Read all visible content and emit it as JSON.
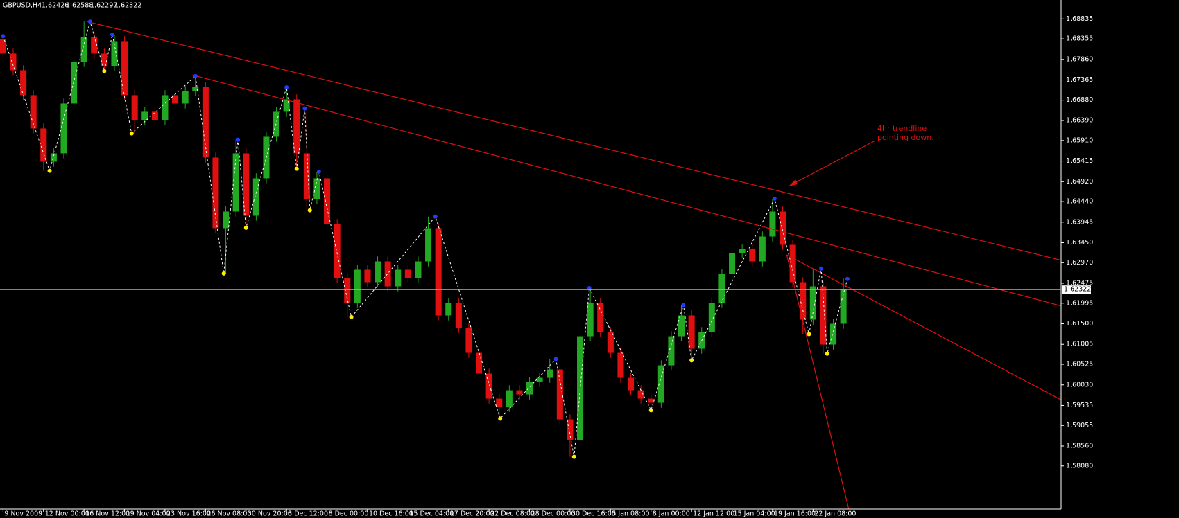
{
  "chart_data": {
    "type": "candlestick",
    "symbol": "GBPUSD,H4",
    "ohlc": [
      1.62426,
      1.62588,
      1.62297,
      1.62322
    ],
    "bull_color": "#22a822",
    "bear_color": "#e01010",
    "ylim": [
      1.5696,
      1.6929
    ],
    "yticks": [
      1.68835,
      1.68355,
      {
        "value": 1.6786,
        "label": "1.67860"
      },
      1.67365,
      {
        "value": 1.6688,
        "label": "1.66880"
      },
      {
        "value": 1.6639,
        "label": "1.66390"
      },
      {
        "value": 1.6591,
        "label": "1.65910"
      },
      1.65415,
      {
        "value": 1.6492,
        "label": "1.64920"
      },
      {
        "value": 1.6444,
        "label": "1.64440"
      },
      1.63945,
      {
        "value": 1.6345,
        "label": "1.63450"
      },
      {
        "value": 1.6297,
        "label": "1.62970"
      },
      1.62475,
      1.61995,
      {
        "value": 1.615,
        "label": "1.61500"
      },
      1.61005,
      1.60525,
      {
        "value": 1.6003,
        "label": "1.60030"
      },
      1.59535,
      1.59055,
      {
        "value": 1.5856,
        "label": "1.58560"
      },
      {
        "value": 1.5808,
        "label": "1.58080"
      }
    ],
    "xlim": [
      -0.3,
      104.5
    ],
    "xticks": [
      {
        "value": 0,
        "label": "9 Nov 2009"
      },
      {
        "value": 4,
        "label": "12 Nov 00:00"
      },
      {
        "value": 8,
        "label": "16 Nov 12:00"
      },
      {
        "value": 12,
        "label": "19 Nov 04:00"
      },
      {
        "value": 16,
        "label": "23 Nov 16:00"
      },
      {
        "value": 20,
        "label": "26 Nov 08:00"
      },
      {
        "value": 24,
        "label": "30 Nov 20:00"
      },
      {
        "value": 28,
        "label": "3 Dec 12:00"
      },
      {
        "value": 32,
        "label": "8 Dec 00:00"
      },
      {
        "value": 36,
        "label": "10 Dec 16:00"
      },
      {
        "value": 40,
        "label": "15 Dec 04:00"
      },
      {
        "value": 44,
        "label": "17 Dec 20:00"
      },
      {
        "value": 48,
        "label": "22 Dec 08:00"
      },
      {
        "value": 52,
        "label": "28 Dec 00:00"
      },
      {
        "value": 56,
        "label": "30 Dec 16:00"
      },
      {
        "value": 60,
        "label": "5 Jan 08:00"
      },
      {
        "value": 64,
        "label": "8 Jan 00:00"
      },
      {
        "value": 68,
        "label": "12 Jan 12:00"
      },
      {
        "value": 72,
        "label": "15 Jan 04:00"
      },
      {
        "value": 76,
        "label": "19 Jan 16:00"
      },
      {
        "value": 80,
        "label": "22 Jan 08:00"
      }
    ],
    "candles": {
      "open": [
        1.6835,
        1.68,
        1.676,
        1.67,
        1.662,
        1.654,
        1.656,
        1.668,
        1.678,
        1.684,
        1.68,
        1.677,
        1.683,
        1.67,
        1.664,
        1.666,
        1.664,
        1.67,
        1.668,
        1.671,
        1.672,
        1.655,
        1.638,
        1.642,
        1.656,
        1.641,
        1.65,
        1.66,
        1.666,
        1.669,
        1.656,
        1.645,
        1.65,
        1.639,
        1.626,
        1.62,
        1.628,
        1.625,
        1.63,
        1.624,
        1.628,
        1.626,
        1.63,
        1.638,
        1.617,
        1.62,
        1.614,
        1.608,
        1.603,
        1.597,
        1.595,
        1.599,
        1.598,
        1.601,
        1.602,
        1.604,
        1.592,
        1.587,
        1.612,
        1.62,
        1.613,
        1.608,
        1.602,
        1.599,
        1.597,
        1.596,
        1.605,
        1.612,
        1.617,
        1.609,
        1.613,
        1.62,
        1.627,
        1.632,
        1.633,
        1.63,
        1.636,
        1.642,
        1.634,
        1.625,
        1.616,
        1.624,
        1.61,
        1.615
      ],
      "high": [
        1.6842,
        1.6812,
        1.6772,
        1.6712,
        1.6632,
        1.6572,
        1.6692,
        1.6792,
        1.6877,
        1.6852,
        1.6812,
        1.6846,
        1.6842,
        1.6712,
        1.6672,
        1.6672,
        1.6712,
        1.6712,
        1.6722,
        1.6746,
        1.6732,
        1.6562,
        1.6432,
        1.6593,
        1.6572,
        1.6512,
        1.6612,
        1.6672,
        1.6719,
        1.6702,
        1.6668,
        1.6516,
        1.6512,
        1.6402,
        1.6272,
        1.6292,
        1.6292,
        1.6312,
        1.6312,
        1.6292,
        1.6292,
        1.6312,
        1.6408,
        1.6392,
        1.6212,
        1.6212,
        1.6152,
        1.6092,
        1.6042,
        1.5982,
        1.6002,
        1.6002,
        1.6022,
        1.6032,
        1.6065,
        1.6052,
        1.5932,
        1.6132,
        1.6236,
        1.6212,
        1.6142,
        1.6092,
        1.6032,
        1.6002,
        1.5982,
        1.6062,
        1.6132,
        1.6195,
        1.6182,
        1.6142,
        1.6212,
        1.6282,
        1.6332,
        1.6342,
        1.6342,
        1.6372,
        1.6451,
        1.6432,
        1.6352,
        1.6262,
        1.6283,
        1.6252,
        1.6162,
        1.6259
      ],
      "low": [
        1.6788,
        1.6748,
        1.6688,
        1.6608,
        1.6518,
        1.6528,
        1.6548,
        1.6668,
        1.6768,
        1.6788,
        1.6758,
        1.6758,
        1.6688,
        1.6608,
        1.6628,
        1.6628,
        1.6628,
        1.6668,
        1.6668,
        1.6698,
        1.6538,
        1.6368,
        1.6271,
        1.6408,
        1.6381,
        1.6398,
        1.6488,
        1.6588,
        1.6648,
        1.6523,
        1.6423,
        1.6438,
        1.6378,
        1.6248,
        1.6166,
        1.6188,
        1.6238,
        1.6238,
        1.6228,
        1.6228,
        1.6248,
        1.6248,
        1.6288,
        1.6158,
        1.6158,
        1.6128,
        1.6068,
        1.6018,
        1.5958,
        1.5922,
        1.5938,
        1.5968,
        1.5968,
        1.5998,
        1.6008,
        1.5908,
        1.583,
        1.5858,
        1.6108,
        1.6118,
        1.6068,
        1.6008,
        1.5978,
        1.5958,
        1.5942,
        1.5948,
        1.6038,
        1.6108,
        1.6062,
        1.6078,
        1.6118,
        1.6188,
        1.6258,
        1.6308,
        1.6288,
        1.6288,
        1.6348,
        1.6328,
        1.6238,
        1.6125,
        1.6148,
        1.6078,
        1.6088,
        1.6138
      ],
      "close": [
        1.68,
        1.676,
        1.67,
        1.662,
        1.654,
        1.656,
        1.668,
        1.678,
        1.684,
        1.68,
        1.677,
        1.683,
        1.67,
        1.664,
        1.666,
        1.664,
        1.67,
        1.668,
        1.671,
        1.672,
        1.655,
        1.638,
        1.642,
        1.656,
        1.641,
        1.65,
        1.66,
        1.666,
        1.669,
        1.656,
        1.645,
        1.65,
        1.639,
        1.626,
        1.62,
        1.628,
        1.625,
        1.63,
        1.624,
        1.628,
        1.626,
        1.63,
        1.638,
        1.617,
        1.62,
        1.614,
        1.608,
        1.603,
        1.597,
        1.595,
        1.599,
        1.598,
        1.601,
        1.602,
        1.604,
        1.592,
        1.587,
        1.612,
        1.62,
        1.613,
        1.608,
        1.602,
        1.599,
        1.597,
        1.596,
        1.605,
        1.612,
        1.617,
        1.609,
        1.613,
        1.62,
        1.627,
        1.632,
        1.633,
        1.63,
        1.636,
        1.642,
        1.634,
        1.625,
        1.616,
        1.624,
        1.61,
        1.615,
        1.6232
      ]
    },
    "zigzag": {
      "x": [
        0,
        4.6,
        8.6,
        10,
        10.8,
        12.7,
        19,
        21.8,
        23.2,
        24,
        28,
        29,
        29.8,
        30.3,
        31.2,
        34.4,
        42.7,
        49.1,
        54.6,
        56.4,
        57.9,
        64,
        67.2,
        68,
        76.2,
        79.6,
        80.8,
        81.4,
        83.4
      ],
      "values": [
        1.6842,
        1.6518,
        1.6877,
        1.6758,
        1.6846,
        1.6608,
        1.6746,
        1.6271,
        1.6593,
        1.6381,
        1.6719,
        1.6523,
        1.6668,
        1.6423,
        1.6516,
        1.6166,
        1.6408,
        1.5922,
        1.6065,
        1.583,
        1.6236,
        1.5942,
        1.6195,
        1.6062,
        1.6451,
        1.6125,
        1.6283,
        1.6078,
        1.6258
      ],
      "line_color": "#ffffff",
      "high_color": "#1f3cff",
      "low_color": "#ffee00"
    },
    "trendline_color": "#e01010",
    "trendlines": [
      {
        "x": [
          8.33,
          104.5
        ],
        "values": [
          1.6877,
          1.6303
        ]
      },
      {
        "x": [
          18.67,
          104.5
        ],
        "values": [
          1.6749,
          1.6193
        ]
      },
      {
        "x": [
          77.4,
          104.5
        ],
        "values": [
          1.6316,
          1.5967
        ]
      },
      {
        "x": [
          77.4,
          83.6
        ],
        "values": [
          1.6316,
          1.5697
        ]
      }
    ],
    "annotation": [
      "4hr trendline",
      "pointing down."
    ]
  }
}
